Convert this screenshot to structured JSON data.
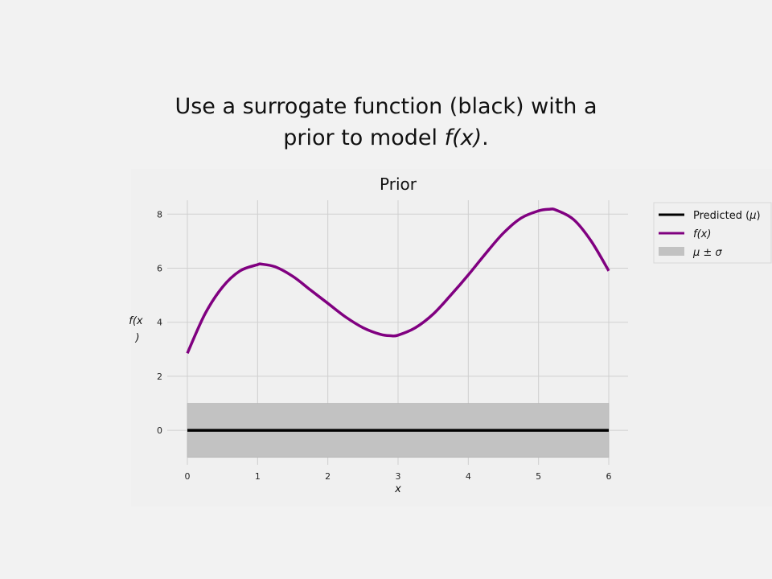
{
  "slide": {
    "title_part1": "Use a surrogate function (black) with a",
    "title_part2": "prior to model ",
    "title_fx": "f(x)",
    "title_end": "."
  },
  "chart_data": {
    "type": "line",
    "title": "Prior",
    "xlabel": "x",
    "ylabel": "f(x)",
    "xlim": [
      0,
      6
    ],
    "ylim": [
      -1.9,
      8.9
    ],
    "xticks": [
      0,
      1,
      2,
      3,
      4,
      5,
      6
    ],
    "yticks": [
      0,
      2,
      4,
      6,
      8
    ],
    "grid": true,
    "legend_placement": "outside-right-top",
    "colors": {
      "predicted": "#000000",
      "fx": "#800080",
      "band": "#c2c2c2",
      "grid": "#cfcfcf",
      "panel": "#f0f0f0"
    },
    "series": [
      {
        "name": "Predicted (μ)",
        "x": [
          0,
          6
        ],
        "y": [
          0,
          0
        ]
      },
      {
        "name": "f(x)",
        "x": [
          0,
          0.25,
          0.5,
          0.75,
          1.0,
          1.05,
          1.25,
          1.5,
          1.75,
          2.0,
          2.25,
          2.5,
          2.75,
          2.9,
          3.0,
          3.25,
          3.5,
          3.75,
          4.0,
          4.25,
          4.5,
          4.75,
          5.0,
          5.15,
          5.25,
          5.5,
          5.75,
          6.0
        ],
        "y": [
          2.85,
          4.3,
          5.3,
          5.9,
          6.13,
          6.15,
          6.05,
          5.7,
          5.2,
          4.7,
          4.2,
          3.8,
          3.55,
          3.5,
          3.52,
          3.8,
          4.3,
          5.0,
          5.75,
          6.55,
          7.3,
          7.85,
          8.12,
          8.18,
          8.15,
          7.8,
          7.0,
          5.9
        ]
      }
    ],
    "band": {
      "name": "μ ± σ",
      "x": [
        0,
        6
      ],
      "lower": [
        -1,
        -1
      ],
      "upper": [
        1,
        1
      ]
    },
    "legend": {
      "predicted_prefix": "Predicted (",
      "predicted_mu": "μ",
      "predicted_suffix": ")",
      "fx": "f(x)",
      "band": "μ ± σ"
    }
  }
}
